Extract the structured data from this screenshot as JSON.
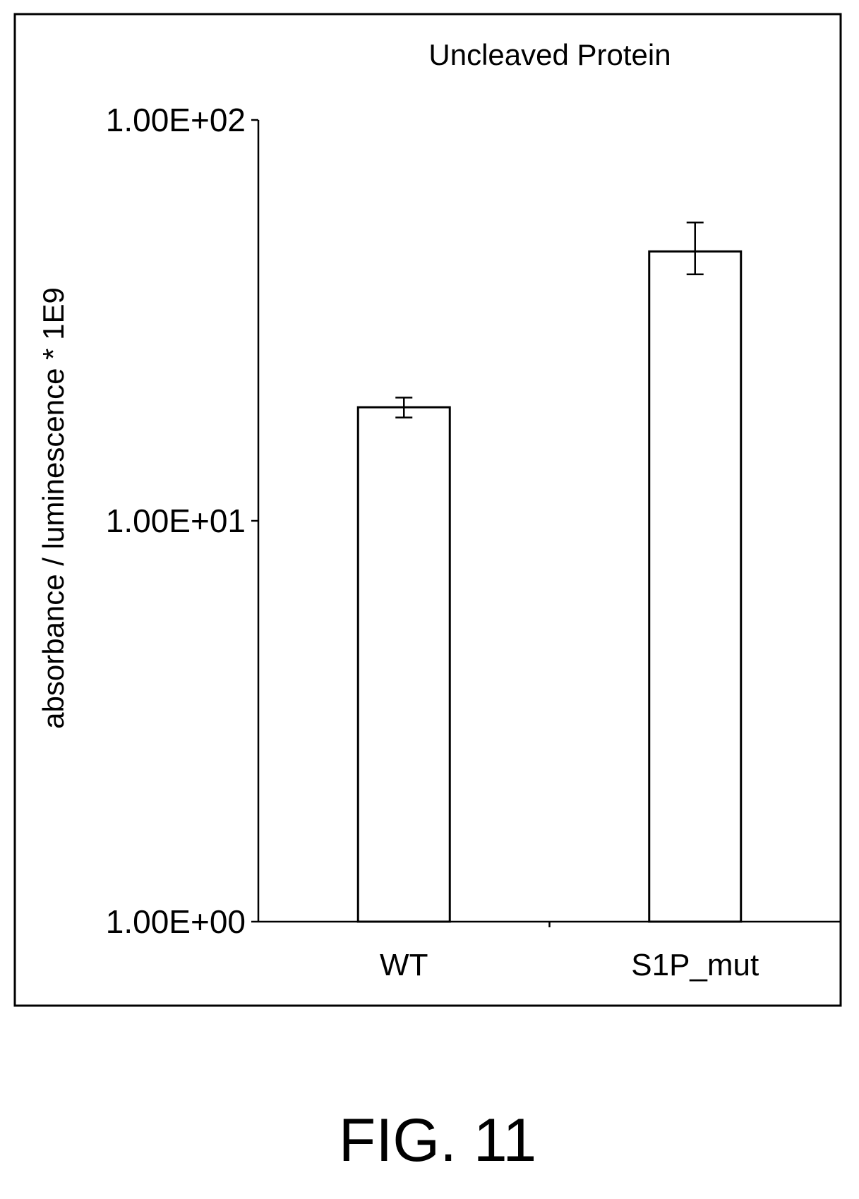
{
  "caption": "FIG. 11",
  "chart_data": {
    "type": "bar",
    "title": "Uncleaved Protein",
    "xlabel": "",
    "ylabel": "absorbance / luminescence * 1E9",
    "yscale": "log",
    "ylim": [
      1,
      100
    ],
    "yticks": [
      1,
      10,
      100
    ],
    "ytick_labels": [
      "1.00E+00",
      "1.00E+01",
      "1.00E+02"
    ],
    "categories": [
      "WT",
      "S1P_mut"
    ],
    "series": [
      {
        "values": [
          19.2,
          47.0
        ],
        "error_low": [
          18.1,
          41.2
        ],
        "error_high": [
          20.3,
          55.5
        ]
      }
    ],
    "colors": {
      "bar_fill": "#ffffff",
      "stroke": "#000000"
    },
    "grid": false,
    "legend": "none"
  }
}
